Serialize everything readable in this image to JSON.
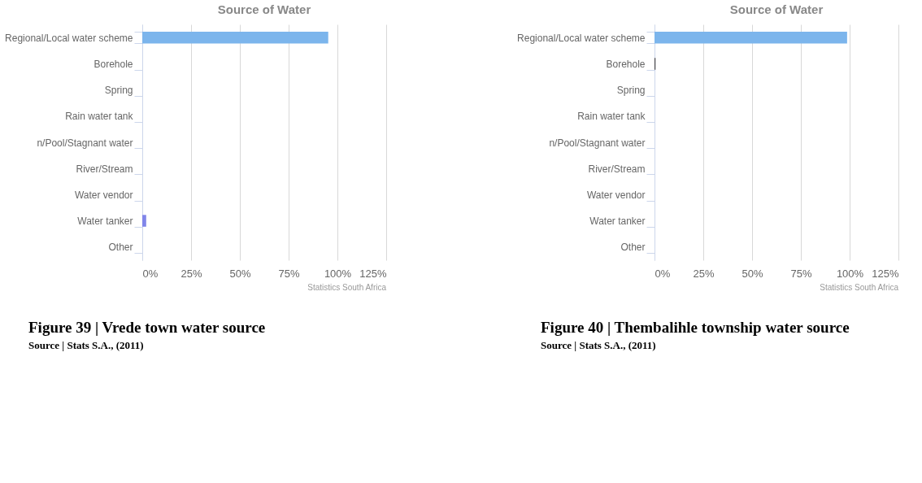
{
  "chart_data": [
    {
      "type": "bar",
      "orientation": "horizontal",
      "title": "Source of Water",
      "categories": [
        "Regional/Local water scheme",
        "Borehole",
        "Spring",
        "Rain water tank",
        "n/Pool/Stagnant water",
        "River/Stream",
        "Water vendor",
        "Water tanker",
        "Other"
      ],
      "values": [
        95.3,
        0,
        0,
        0,
        0,
        0,
        0,
        2,
        0
      ],
      "colors": [
        "#7cb5ec",
        "#434348",
        "#90ed7d",
        "#f7a35c",
        "#8085e9",
        "#f15c80",
        "#e4d354",
        "#8085e9",
        "#f45b5b"
      ],
      "xlim": [
        0,
        125
      ],
      "xticks": [
        {
          "value": 0,
          "label": "0%"
        },
        {
          "value": 25,
          "label": "25%"
        },
        {
          "value": 50,
          "label": "50%"
        },
        {
          "value": 75,
          "label": "75%"
        },
        {
          "value": 100,
          "label": "100%"
        },
        {
          "value": 125,
          "label": "125%"
        }
      ],
      "grid": "x",
      "annotations": [
        "Statistics South Africa",
        "Figure 39 | Vrede town water source",
        "Source | Stats S.A., (2011)"
      ]
    },
    {
      "type": "bar",
      "orientation": "horizontal",
      "title": "Source of Water",
      "categories": [
        "Regional/Local water scheme",
        "Borehole",
        "Spring",
        "Rain water tank",
        "n/Pool/Stagnant water",
        "River/Stream",
        "Water vendor",
        "Water tanker",
        "Other"
      ],
      "values": [
        98.7,
        0.5,
        0,
        0,
        0,
        0,
        0,
        0,
        0
      ],
      "colors": [
        "#7cb5ec",
        "#434348",
        "#90ed7d",
        "#f7a35c",
        "#8085e9",
        "#f15c80",
        "#e4d354",
        "#2b908f",
        "#f45b5b"
      ],
      "xlim": [
        0,
        125
      ],
      "xticks": [
        {
          "value": 0,
          "label": "0%"
        },
        {
          "value": 25,
          "label": "25%"
        },
        {
          "value": 50,
          "label": "50%"
        },
        {
          "value": 75,
          "label": "75%"
        },
        {
          "value": 100,
          "label": "100%"
        },
        {
          "value": 125,
          "label": "125%"
        }
      ],
      "grid": "x",
      "annotations": [
        "Statistics South Africa",
        "Figure 40 | Thembalihle township water source",
        "Source | Stats S.A., (2011)"
      ]
    }
  ]
}
